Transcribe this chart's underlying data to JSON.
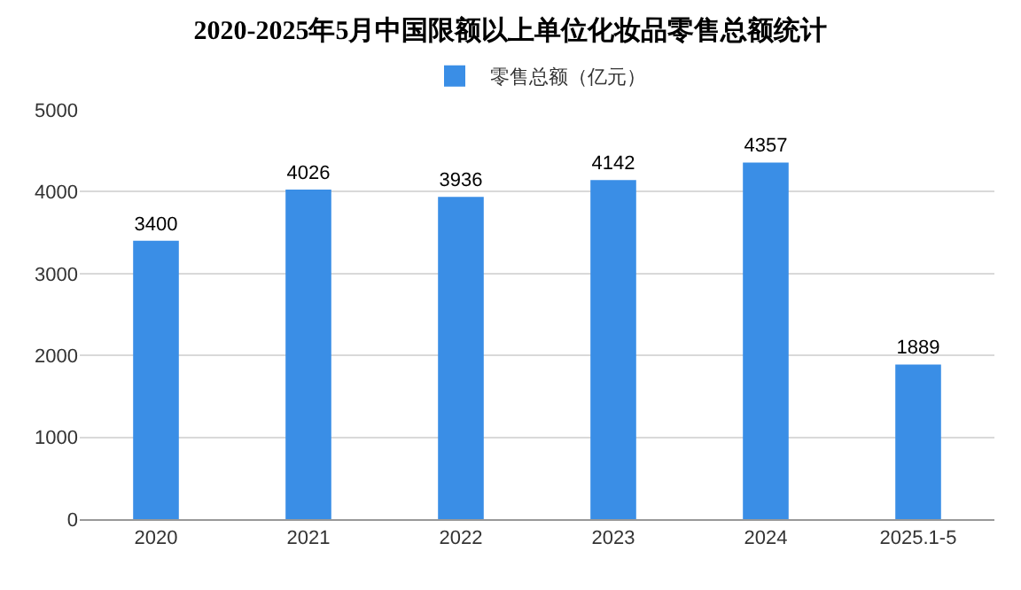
{
  "chart_data": {
    "type": "bar",
    "title": "2020-2025年5月中国限额以上单位化妆品零售总额统计",
    "categories": [
      "2020",
      "2021",
      "2022",
      "2023",
      "2024",
      "2025.1-5"
    ],
    "series": [
      {
        "name": "零售总额（亿元）",
        "color": "#3a8ee6",
        "values": [
          3400,
          4026,
          3936,
          4142,
          4357,
          1889
        ]
      }
    ],
    "ylim": [
      0,
      5000
    ],
    "yticks": [
      0,
      1000,
      2000,
      3000,
      4000,
      5000
    ],
    "grid": "y",
    "legend": "top",
    "data_labels": true
  }
}
